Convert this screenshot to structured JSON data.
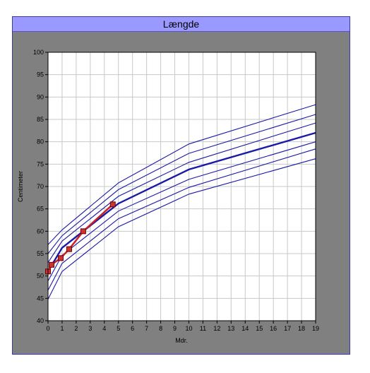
{
  "window": {
    "title": "Længde"
  },
  "chart_data": {
    "type": "line",
    "title": "Længde",
    "xlabel": "Mdr.",
    "ylabel": "Centimeter",
    "xlim": [
      0,
      19
    ],
    "ylim": [
      40,
      100
    ],
    "x_ticks": [
      "0",
      "1",
      "2",
      "3",
      "4",
      "5",
      "6",
      "7",
      "8",
      "9",
      "10",
      "11",
      "12",
      "13",
      "14",
      "15",
      "16",
      "17",
      "18",
      "19"
    ],
    "y_ticks": [
      "40",
      "45",
      "50",
      "55",
      "60",
      "65",
      "70",
      "75",
      "80",
      "85",
      "90",
      "95",
      "100"
    ],
    "grid": true,
    "background": "#808080",
    "plot_background": "#ffffff",
    "series": [
      {
        "style": "reference",
        "color": "#1a1aa6",
        "points": [
          [
            0,
            44.8
          ],
          [
            1,
            51.0
          ],
          [
            5,
            61.0
          ],
          [
            10,
            68.3
          ],
          [
            19,
            76.2
          ]
        ]
      },
      {
        "style": "reference",
        "color": "#1a1aa6",
        "points": [
          [
            0,
            46.8
          ],
          [
            1,
            52.8
          ],
          [
            5,
            62.8
          ],
          [
            10,
            69.8
          ],
          [
            19,
            78.4
          ]
        ]
      },
      {
        "style": "reference",
        "color": "#1a1aa6",
        "points": [
          [
            0,
            48.9
          ],
          [
            1,
            54.6
          ],
          [
            5,
            64.5
          ],
          [
            10,
            71.6
          ],
          [
            19,
            80.0
          ]
        ]
      },
      {
        "style": "median",
        "color": "#1a1aa6",
        "points": [
          [
            0,
            51.0
          ],
          [
            1,
            56.3
          ],
          [
            5,
            66.2
          ],
          [
            10,
            73.8
          ],
          [
            19,
            82.0
          ]
        ]
      },
      {
        "style": "reference",
        "color": "#1a1aa6",
        "points": [
          [
            0,
            53.0
          ],
          [
            1,
            57.8
          ],
          [
            5,
            67.8
          ],
          [
            10,
            75.4
          ],
          [
            19,
            84.2
          ]
        ]
      },
      {
        "style": "reference",
        "color": "#1a1aa6",
        "points": [
          [
            0,
            55.0
          ],
          [
            1,
            59.0
          ],
          [
            5,
            69.3
          ],
          [
            10,
            77.4
          ],
          [
            19,
            86.1
          ]
        ]
      },
      {
        "style": "reference",
        "color": "#1a1aa6",
        "points": [
          [
            0,
            57.0
          ],
          [
            1,
            60.3
          ],
          [
            5,
            70.8
          ],
          [
            10,
            79.5
          ],
          [
            19,
            88.3
          ]
        ]
      },
      {
        "style": "measured",
        "color": "#cc2222",
        "marker_color": "#cc3333",
        "points": [
          [
            0,
            51.0
          ],
          [
            0.25,
            52.5
          ],
          [
            0.9,
            54.0
          ],
          [
            1.5,
            56.0
          ],
          [
            2.5,
            60.0
          ],
          [
            4.6,
            66.0
          ]
        ]
      }
    ]
  }
}
